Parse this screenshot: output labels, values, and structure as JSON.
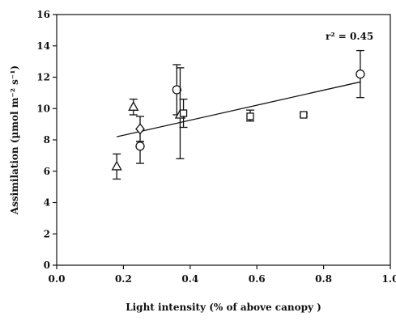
{
  "chart_data": {
    "type": "scatter",
    "title": "",
    "xlabel": "Light intensity (% of above canopy )",
    "ylabel": "Assimilation (µmol m⁻² s⁻¹)",
    "xlim": [
      0.0,
      1.0
    ],
    "ylim": [
      0,
      16
    ],
    "x_ticks": [
      "0.0",
      "0.2",
      "0.4",
      "0.6",
      "0.8",
      "1.0"
    ],
    "y_ticks": [
      "0",
      "2",
      "4",
      "6",
      "8",
      "10",
      "12",
      "14",
      "16"
    ],
    "grid": false,
    "annotation": "r² = 0.45",
    "marker_color": "#111111",
    "points": [
      {
        "marker": "triangle",
        "x": 0.18,
        "y": 6.3,
        "err_low": 5.5,
        "err_high": 7.1
      },
      {
        "marker": "triangle",
        "x": 0.23,
        "y": 10.1,
        "err_low": 9.6,
        "err_high": 10.6
      },
      {
        "marker": "diamond",
        "x": 0.25,
        "y": 8.7,
        "err_low": 7.9,
        "err_high": 9.5
      },
      {
        "marker": "circle",
        "x": 0.25,
        "y": 7.6,
        "err_low": 6.5,
        "err_high": 7.9
      },
      {
        "marker": "circle",
        "x": 0.36,
        "y": 11.2,
        "err_low": 9.6,
        "err_high": 12.8
      },
      {
        "marker": "triangle",
        "x": 0.37,
        "y": 9.6,
        "err_low": 6.8,
        "err_high": 12.6
      },
      {
        "marker": "square",
        "x": 0.38,
        "y": 9.7,
        "err_low": 8.8,
        "err_high": 10.6
      },
      {
        "marker": "square",
        "x": 0.58,
        "y": 9.5,
        "err_low": 9.2,
        "err_high": 9.9
      },
      {
        "marker": "square",
        "x": 0.74,
        "y": 9.6,
        "err_low": 9.5,
        "err_high": 9.7
      },
      {
        "marker": "circle",
        "x": 0.91,
        "y": 12.2,
        "err_low": 10.7,
        "err_high": 13.7
      }
    ],
    "regression": {
      "x1": 0.18,
      "y1": 8.2,
      "x2": 0.91,
      "y2": 11.7
    }
  }
}
